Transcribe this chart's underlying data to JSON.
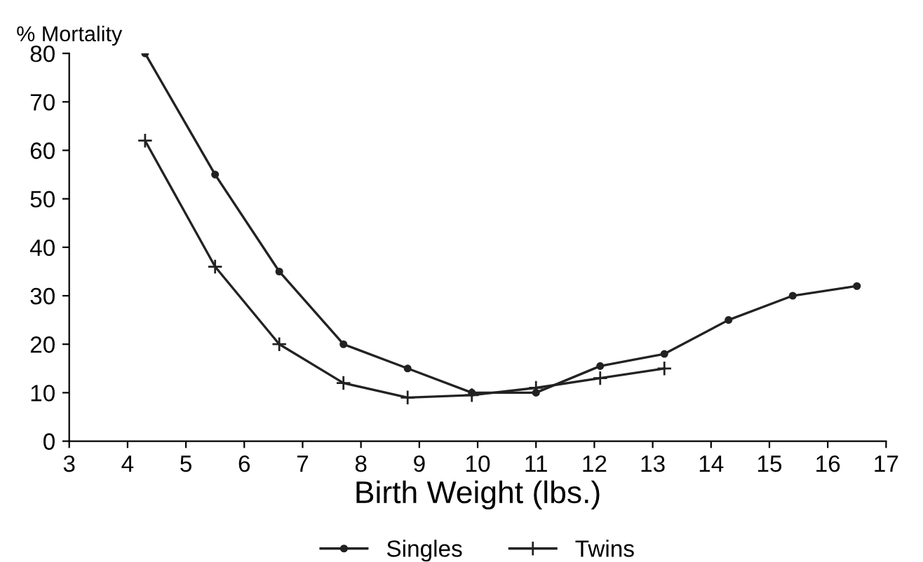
{
  "chart_data": {
    "type": "line",
    "ylabel": "% Mortality",
    "xlabel": "Birth Weight (lbs.)",
    "xlim": [
      3,
      17
    ],
    "xticks": [
      3,
      4,
      5,
      6,
      7,
      8,
      9,
      10,
      11,
      12,
      13,
      14,
      15,
      16,
      17
    ],
    "ylim": [
      0,
      80
    ],
    "yticks": [
      0,
      10,
      20,
      30,
      40,
      50,
      60,
      70,
      80
    ],
    "legend": "bottom",
    "grid": false,
    "line_style": "solid",
    "series": [
      {
        "name": "Singles",
        "color": "#222222",
        "marker": "circle",
        "x": [
          4.3,
          5.5,
          6.6,
          7.7,
          8.8,
          9.9,
          11,
          12.1,
          13.2,
          14.3,
          15.4,
          16.5
        ],
        "values": [
          80,
          55,
          35,
          20,
          15,
          10,
          10,
          15.5,
          18,
          25,
          30,
          32
        ]
      },
      {
        "name": "Twins",
        "color": "#222222",
        "marker": "cross",
        "x": [
          4.3,
          5.5,
          6.6,
          7.7,
          8.8,
          9.9,
          11,
          12.1,
          13.2
        ],
        "values": [
          62,
          36,
          20,
          12,
          9,
          9.5,
          11,
          13,
          15
        ]
      }
    ]
  }
}
